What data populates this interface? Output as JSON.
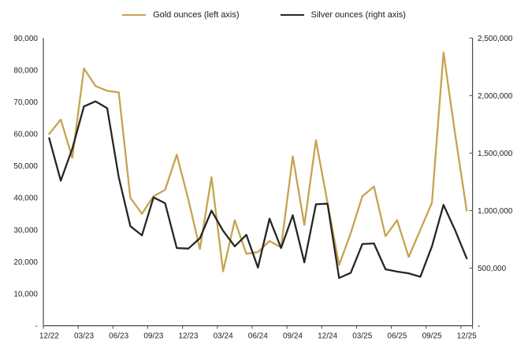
{
  "legend": {
    "gold_label": "Gold ounces (left axis)",
    "silver_label": "Silver ounces (right axis)"
  },
  "colors": {
    "gold": "#C7A34F",
    "silver": "#262626",
    "axis": "#4a4a4a",
    "label_text": "#222222",
    "background": "#ffffff"
  },
  "chart_data": {
    "type": "line",
    "title": "",
    "xlabel": "",
    "ylabel_left": "",
    "ylabel_right": "",
    "grid": false,
    "legend_position": "top-center",
    "x_tick_labels": [
      "12/22",
      "03/23",
      "06/23",
      "09/23",
      "12/23",
      "03/24",
      "06/24",
      "09/24",
      "12/24",
      "03/25",
      "06/25",
      "09/25",
      "12/25"
    ],
    "x": [
      "12/22",
      "01/23",
      "02/23",
      "03/23",
      "04/23",
      "05/23",
      "06/23",
      "07/23",
      "08/23",
      "09/23",
      "10/23",
      "11/23",
      "12/23",
      "01/24",
      "02/24",
      "03/24",
      "04/24",
      "05/24",
      "06/24",
      "07/24",
      "08/24",
      "09/24",
      "10/24",
      "11/24",
      "12/24",
      "01/25",
      "02/25",
      "03/25",
      "04/25",
      "05/25",
      "06/25",
      "07/25",
      "08/25",
      "09/25",
      "10/25",
      "11/25",
      "12/25"
    ],
    "series": [
      {
        "name": "Gold ounces (left axis)",
        "axis": "left",
        "color": "#C7A34F",
        "values": [
          60000,
          64500,
          52500,
          80500,
          75000,
          73500,
          73000,
          40000,
          35000,
          40500,
          42500,
          53500,
          39500,
          24000,
          46500,
          17000,
          33000,
          22500,
          23000,
          26500,
          24500,
          53000,
          31500,
          58000,
          38500,
          19000,
          29000,
          40500,
          43500,
          28000,
          33000,
          21500,
          30000,
          38500,
          85500,
          60000,
          36000
        ]
      },
      {
        "name": "Silver ounces (right axis)",
        "axis": "right",
        "color": "#262626",
        "values": [
          1630000,
          1260000,
          1540000,
          1905000,
          1950000,
          1890000,
          1290000,
          865000,
          785000,
          1115000,
          1065000,
          675000,
          670000,
          760000,
          1000000,
          825000,
          690000,
          790000,
          505000,
          930000,
          675000,
          960000,
          550000,
          1055000,
          1060000,
          415000,
          460000,
          710000,
          715000,
          490000,
          470000,
          455000,
          425000,
          690000,
          1050000,
          830000,
          585000
        ]
      }
    ],
    "left_axis": {
      "min": 0,
      "max": 90000,
      "tick_interval": 10000,
      "tick_labels": [
        "-",
        "10,000",
        "20,000",
        "30,000",
        "40,000",
        "50,000",
        "60,000",
        "70,000",
        "80,000",
        "90,000"
      ]
    },
    "right_axis": {
      "min": 0,
      "max": 2500000,
      "tick_interval": 500000,
      "tick_labels": [
        "-",
        "500,000",
        "1,000,000",
        "1,500,000",
        "2,000,000",
        "2,500,000"
      ]
    }
  }
}
